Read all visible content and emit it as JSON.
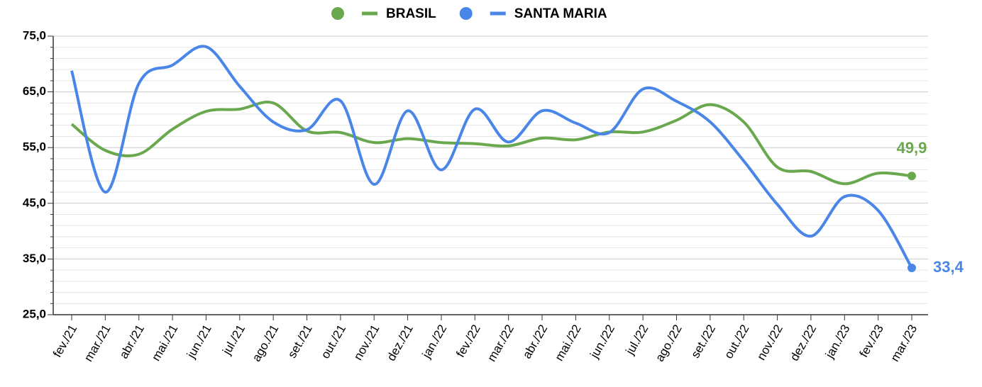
{
  "chart_data": {
    "type": "line",
    "categories": [
      "fev./21",
      "mar./21",
      "abr./21",
      "mai./21",
      "jun./21",
      "jul./21",
      "ago./21",
      "set./21",
      "out./21",
      "nov./21",
      "dez./21",
      "jan./22",
      "fev./22",
      "mar./22",
      "abr./22",
      "mai./22",
      "jun./22",
      "jul./22",
      "ago./22",
      "set./22",
      "out./22",
      "nov./22",
      "dez./22",
      "jan./23",
      "fev./23",
      "mar./23"
    ],
    "series": [
      {
        "name": "BRASIL",
        "color": "#6aa84f",
        "values": [
          59.2,
          54.5,
          53.8,
          58.3,
          61.5,
          61.9,
          63.0,
          58.0,
          57.7,
          55.9,
          56.6,
          55.9,
          55.7,
          55.3,
          56.7,
          56.4,
          57.8,
          57.8,
          59.9,
          62.7,
          59.6,
          51.5,
          50.7,
          48.5,
          50.4,
          49.9
        ],
        "value_labels": [
          null,
          null,
          null,
          null,
          null,
          null,
          null,
          null,
          null,
          null,
          null,
          null,
          null,
          null,
          null,
          null,
          null,
          null,
          null,
          null,
          null,
          null,
          null,
          null,
          null,
          "49,9"
        ]
      },
      {
        "name": "SANTA MARIA",
        "color": "#4a86e8",
        "values": [
          68.8,
          47.0,
          66.5,
          69.8,
          73.1,
          66.0,
          59.6,
          58.2,
          63.4,
          48.4,
          61.6,
          51.0,
          61.9,
          56.0,
          61.6,
          59.4,
          57.7,
          65.5,
          63.3,
          59.6,
          52.6,
          44.8,
          39.1,
          46.2,
          43.7,
          33.4
        ],
        "value_labels": [
          null,
          null,
          null,
          null,
          null,
          null,
          null,
          null,
          null,
          null,
          null,
          null,
          null,
          null,
          null,
          null,
          null,
          null,
          null,
          null,
          null,
          null,
          null,
          null,
          null,
          "33,4"
        ]
      }
    ],
    "ylim": [
      25,
      75
    ],
    "yticks": [
      {
        "value": 25,
        "label": "25,0"
      },
      {
        "value": 35,
        "label": "35,0"
      },
      {
        "value": 45,
        "label": "45,0"
      },
      {
        "value": 55,
        "label": "55,0"
      },
      {
        "value": 65,
        "label": "65,0"
      },
      {
        "value": 75,
        "label": "75,0"
      }
    ],
    "grid": true,
    "legend": "top"
  }
}
